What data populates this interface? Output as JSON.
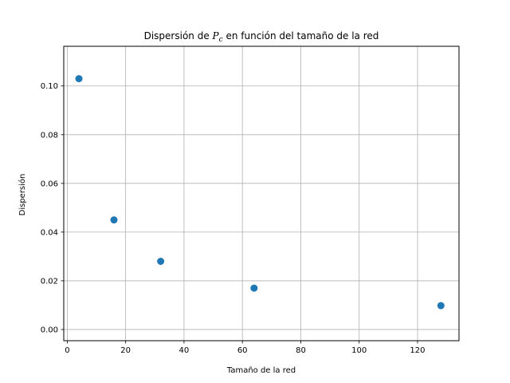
{
  "chart_data": {
    "type": "scatter",
    "title_prefix": "Dispersión de ",
    "title_math": "P",
    "title_math_sub": "c",
    "title_suffix": " en función del tamaño de la red",
    "xlabel": "Tamaño de la red",
    "ylabel": "Dispersión",
    "xlim": [
      -1.2,
      134.2
    ],
    "ylim": [
      -0.0046,
      0.1163
    ],
    "xticks": [
      0,
      20,
      40,
      60,
      80,
      100,
      120
    ],
    "yticks": [
      0.0,
      0.02,
      0.04,
      0.06,
      0.08,
      0.1
    ],
    "ytick_labels": [
      "0.00",
      "0.02",
      "0.04",
      "0.06",
      "0.08",
      "0.10"
    ],
    "grid": true,
    "color": "#1f77b4",
    "x": [
      4,
      16,
      32,
      64,
      128
    ],
    "y": [
      0.103,
      0.045,
      0.028,
      0.017,
      0.0098
    ]
  }
}
